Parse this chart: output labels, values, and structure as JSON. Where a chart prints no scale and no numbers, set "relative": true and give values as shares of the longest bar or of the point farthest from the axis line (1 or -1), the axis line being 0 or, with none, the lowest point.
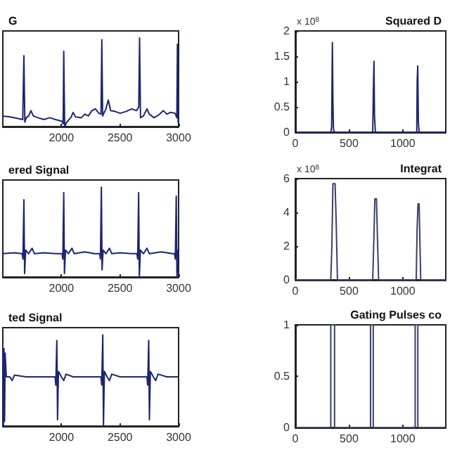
{
  "chart_data": [
    {
      "type": "line",
      "title": "G",
      "relative": true,
      "tick_labels": "x",
      "color": "#1c2570",
      "xlim": [
        1500,
        3000
      ],
      "xticks": [
        2000,
        2500,
        3000
      ],
      "x": [
        1500,
        1560,
        1600,
        1670,
        1680,
        1688,
        1700,
        1720,
        1740,
        1760,
        1800,
        1850,
        1900,
        1950,
        2005,
        2015,
        2020,
        2028,
        2045,
        2080,
        2100,
        2120,
        2170,
        2200,
        2230,
        2260,
        2290,
        2320,
        2338,
        2345,
        2352,
        2380,
        2400,
        2420,
        2460,
        2500,
        2550,
        2600,
        2640,
        2660,
        2667,
        2675,
        2700,
        2730,
        2750,
        2790,
        2830,
        2870,
        2900,
        2930,
        2970,
        2985,
        2990,
        2996,
        3000
      ],
      "values": [
        0.12,
        0.11,
        0.1,
        0.08,
        0.8,
        0.05,
        0.1,
        0.12,
        0.18,
        0.12,
        0.1,
        0.08,
        0.1,
        0.08,
        0.06,
        0.03,
        0.85,
        0,
        0.05,
        0.1,
        0.16,
        0.11,
        0.1,
        0.14,
        0.12,
        0.18,
        0.2,
        0.15,
        0.14,
        0.98,
        0.12,
        0.2,
        0.3,
        0.18,
        0.17,
        0.15,
        0.17,
        0.2,
        0.18,
        0.22,
        1,
        0.1,
        0.12,
        0.2,
        0.14,
        0.1,
        0.13,
        0.18,
        0.14,
        0.16,
        0.15,
        0.1,
        0.93,
        0.05,
        0.08
      ]
    },
    {
      "type": "line",
      "title": "ered Signal",
      "relative": true,
      "tick_labels": "x",
      "color": "#1c2570",
      "xlim": [
        1500,
        3000
      ],
      "xticks": [
        2000,
        2500,
        3000
      ],
      "x": [
        1500,
        1600,
        1665,
        1672,
        1680,
        1686,
        1695,
        1720,
        1750,
        1770,
        1850,
        1950,
        2005,
        2012,
        2020,
        2026,
        2035,
        2060,
        2090,
        2110,
        2200,
        2280,
        2326,
        2333,
        2341,
        2347,
        2356,
        2380,
        2410,
        2430,
        2500,
        2600,
        2644,
        2651,
        2659,
        2665,
        2674,
        2700,
        2730,
        2750,
        2850,
        2950,
        2965,
        2972,
        2980,
        2986,
        2995,
        3000
      ],
      "values": [
        0.26,
        0.27,
        0.26,
        0.2,
        0.86,
        0.04,
        0.3,
        0.26,
        0.32,
        0.26,
        0.27,
        0.26,
        0.26,
        0.2,
        0.94,
        0.04,
        0.3,
        0.26,
        0.32,
        0.26,
        0.28,
        0.26,
        0.26,
        0.2,
        1,
        0.08,
        0.3,
        0.26,
        0.32,
        0.26,
        0.27,
        0.26,
        0.26,
        0.2,
        0.94,
        0,
        0.3,
        0.26,
        0.32,
        0.26,
        0.28,
        0.26,
        0.26,
        0.2,
        0.9,
        0,
        0.3,
        0.26
      ]
    },
    {
      "type": "line",
      "title": "ted Signal",
      "relative": true,
      "tick_labels": "x",
      "color": "#1c2570",
      "xlim": [
        1500,
        3000
      ],
      "xticks": [
        2000,
        2500,
        3000
      ],
      "x": [
        1500,
        1505,
        1510,
        1515,
        1520,
        1530,
        1560,
        1580,
        1600,
        1700,
        1800,
        1900,
        1946,
        1952,
        1961,
        1967,
        1975,
        2000,
        2020,
        2040,
        2100,
        2200,
        2300,
        2338,
        2344,
        2353,
        2359,
        2367,
        2390,
        2410,
        2430,
        2500,
        2600,
        2700,
        2730,
        2736,
        2745,
        2751,
        2759,
        2785,
        2805,
        2825,
        2900,
        3000
      ],
      "values": [
        0.89,
        0,
        0.85,
        0.05,
        0.8,
        0.54,
        0.54,
        0.5,
        0.56,
        0.54,
        0.54,
        0.54,
        0.54,
        0.45,
        0.94,
        0.07,
        0.6,
        0.54,
        0.5,
        0.57,
        0.54,
        0.54,
        0.54,
        0.54,
        0.45,
        1,
        0,
        0.6,
        0.54,
        0.5,
        0.57,
        0.54,
        0.54,
        0.54,
        0.54,
        0.45,
        0.94,
        0.07,
        0.6,
        0.54,
        0.5,
        0.57,
        0.54,
        0.54
      ]
    },
    {
      "type": "line",
      "title": "Squared D",
      "annotations": [
        "x 10$^{8}$"
      ],
      "color": "#1c2570",
      "xlim": [
        0,
        1400
      ],
      "xticks": [
        0,
        500,
        1000
      ],
      "ylim": [
        0,
        2
      ],
      "yticks": [
        0,
        0.5,
        1,
        1.5,
        2
      ],
      "x": [
        0,
        330,
        338,
        345,
        350,
        355,
        365,
        720,
        727,
        732,
        737,
        745,
        1130,
        1134,
        1139,
        1145,
        1152,
        1400
      ],
      "values": [
        0,
        0,
        0.1,
        1.77,
        0.6,
        0.05,
        0,
        0,
        0.9,
        1.4,
        0.3,
        0,
        0,
        1,
        1.31,
        0.2,
        0,
        0
      ]
    },
    {
      "type": "line",
      "title": "Integrat",
      "annotations": [
        "x 10$^{8}$"
      ],
      "color": "#3a3f6a",
      "xlim": [
        0,
        1400
      ],
      "xticks": [
        0,
        500,
        1000
      ],
      "ylim": [
        0,
        6
      ],
      "yticks": [
        0,
        2,
        4,
        6
      ],
      "x": [
        0,
        330,
        340,
        350,
        370,
        380,
        392,
        720,
        730,
        740,
        755,
        765,
        775,
        1125,
        1133,
        1142,
        1152,
        1160,
        1167,
        1400
      ],
      "values": [
        0,
        0,
        2,
        5.7,
        5.7,
        3.5,
        0,
        0,
        2.2,
        4.8,
        4.8,
        2.3,
        0,
        0,
        3,
        4.5,
        4.5,
        2,
        0,
        0
      ]
    },
    {
      "type": "line",
      "title": "Gating Pulses co",
      "color": "#3a3f6a",
      "xlim": [
        0,
        1400
      ],
      "xticks": [
        0,
        500,
        1000
      ],
      "ylim": [
        0,
        1
      ],
      "yticks": [
        0,
        0.5,
        1
      ],
      "x": [
        0,
        330,
        330,
        365,
        365,
        700,
        700,
        725,
        725,
        1115,
        1115,
        1140,
        1140,
        1400
      ],
      "values": [
        0,
        0,
        1,
        1,
        0,
        0,
        1,
        1,
        0,
        0,
        1,
        1,
        0,
        0
      ]
    }
  ]
}
